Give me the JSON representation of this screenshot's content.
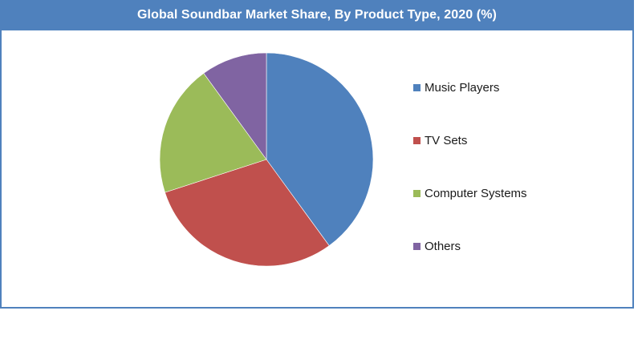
{
  "chart_data": {
    "type": "pie",
    "title": "Global Soundbar Market Share, By Product Type, 2020 (%)",
    "categories": [
      "Music Players",
      "TV Sets",
      "Computer Systems",
      "Others"
    ],
    "values": [
      40,
      30,
      20,
      10
    ],
    "colors": [
      "#4f81bd",
      "#c0504d",
      "#9bbb59",
      "#8064a2"
    ],
    "legend_position": "right"
  }
}
